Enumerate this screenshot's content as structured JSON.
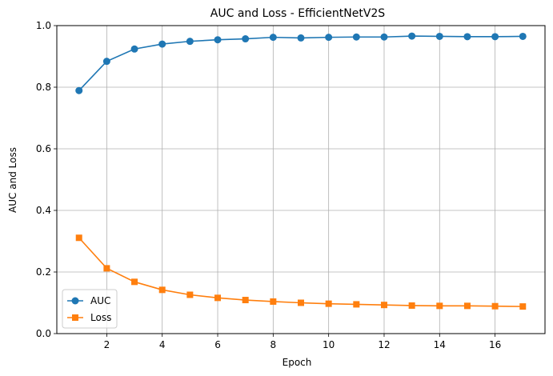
{
  "chart_data": {
    "type": "line",
    "title": "AUC and Loss - EfficientNetV2S",
    "xlabel": "Epoch",
    "ylabel": "AUC and Loss",
    "x": [
      1,
      2,
      3,
      4,
      5,
      6,
      7,
      8,
      9,
      10,
      11,
      12,
      13,
      14,
      15,
      16,
      17
    ],
    "xlim": [
      0.2,
      17.8
    ],
    "ylim": [
      0,
      1
    ],
    "xticks": [
      "2",
      "4",
      "6",
      "8",
      "10",
      "12",
      "14",
      "16"
    ],
    "yticks": [
      "0.0",
      "0.2",
      "0.4",
      "0.6",
      "0.8",
      "1.0"
    ],
    "grid": true,
    "legend_position": "lower-left",
    "series": [
      {
        "name": "AUC",
        "color": "#1f77b4",
        "marker": "circle",
        "values": [
          0.789,
          0.884,
          0.924,
          0.94,
          0.949,
          0.954,
          0.957,
          0.962,
          0.96,
          0.962,
          0.963,
          0.963,
          0.966,
          0.965,
          0.964,
          0.964,
          0.965
        ]
      },
      {
        "name": "Loss",
        "color": "#ff7f0e",
        "marker": "square",
        "values": [
          0.311,
          0.212,
          0.168,
          0.142,
          0.126,
          0.116,
          0.109,
          0.104,
          0.1,
          0.097,
          0.095,
          0.093,
          0.091,
          0.09,
          0.09,
          0.089,
          0.088
        ]
      }
    ]
  }
}
